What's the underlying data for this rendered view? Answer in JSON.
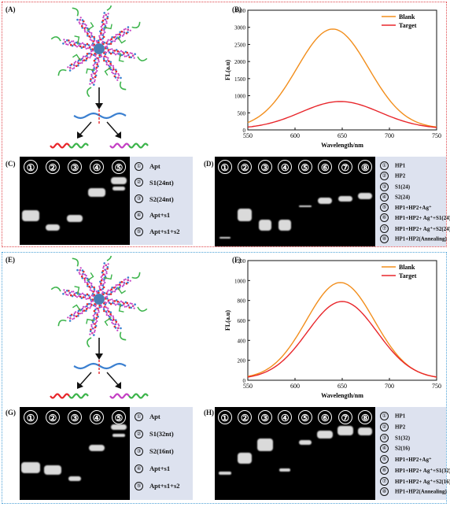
{
  "panels": {
    "A": "(A)",
    "B": "(B)",
    "C": "(C)",
    "D": "(D)",
    "E": "(E)",
    "F": "(F)",
    "G": "(G)",
    "H": "(H)"
  },
  "chart_data": [
    {
      "type": "line",
      "panel": "B",
      "xlabel": "Wavelength/nm",
      "ylabel": "FL(a.u)",
      "xlim": [
        550,
        750
      ],
      "ylim": [
        0,
        3500
      ],
      "xticks": [
        "550",
        "600",
        "650",
        "700",
        "750"
      ],
      "yticks": [
        "0",
        "500",
        "1000",
        "1500",
        "2000",
        "2500",
        "3000",
        "3500"
      ],
      "series": [
        {
          "name": "Blank",
          "color": "#f28e1c",
          "peak_x": 640,
          "peak_y": 2950,
          "width": 38,
          "baseline": 40
        },
        {
          "name": "Target",
          "color": "#e8262b",
          "peak_x": 648,
          "peak_y": 830,
          "width": 42,
          "baseline": 30
        }
      ],
      "legend": "top-right"
    },
    {
      "type": "line",
      "panel": "F",
      "xlabel": "Wavelength/nm",
      "ylabel": "FL(a.u)",
      "xlim": [
        550,
        750
      ],
      "ylim": [
        0,
        1200
      ],
      "xticks": [
        "550",
        "600",
        "650",
        "700",
        "750"
      ],
      "yticks": [
        "0",
        "200",
        "400",
        "600",
        "800",
        "1000",
        "1200"
      ],
      "series": [
        {
          "name": "Blank",
          "color": "#f28e1c",
          "peak_x": 648,
          "peak_y": 980,
          "width": 36,
          "baseline": 15
        },
        {
          "name": "Target",
          "color": "#e8262b",
          "peak_x": 650,
          "peak_y": 790,
          "width": 37,
          "baseline": 12
        }
      ],
      "legend": "top-right"
    }
  ],
  "gels": {
    "C": {
      "lanes": [
        "①",
        "②",
        "③",
        "④",
        "⑤"
      ],
      "legend": [
        {
          "num": "①",
          "text": "Apt"
        },
        {
          "num": "②",
          "text": "S1(24nt)"
        },
        {
          "num": "③",
          "text": "S2(24nt)"
        },
        {
          "num": "④",
          "text": "Apt+s1"
        },
        {
          "num": "⑤",
          "text": "Apt+s1+s2"
        }
      ]
    },
    "D": {
      "lanes": [
        "①",
        "②",
        "③",
        "④",
        "⑤",
        "⑥",
        "⑦",
        "⑧"
      ],
      "legend": [
        {
          "num": "①",
          "text": "HP1"
        },
        {
          "num": "②",
          "text": "HP2"
        },
        {
          "num": "③",
          "text": "S1(24)"
        },
        {
          "num": "④",
          "text": "S2(24)"
        },
        {
          "num": "⑤",
          "text": "HP1+HP2+Ag⁺"
        },
        {
          "num": "⑥",
          "text": "HP1+HP2+ Ag⁺+S1(24)"
        },
        {
          "num": "⑦",
          "text": "HP1+HP2+ Ag⁺+S2(24)"
        },
        {
          "num": "⑧",
          "text": "HP1+HP2(Annealing)"
        }
      ]
    },
    "G": {
      "lanes": [
        "①",
        "②",
        "③",
        "④",
        "⑤"
      ],
      "legend": [
        {
          "num": "①",
          "text": "Apt"
        },
        {
          "num": "②",
          "text": "S1(32nt)"
        },
        {
          "num": "③",
          "text": "S2(16nt)"
        },
        {
          "num": "④",
          "text": "Apt+s1"
        },
        {
          "num": "⑤",
          "text": "Apt+s1+s2"
        }
      ]
    },
    "H": {
      "lanes": [
        "①",
        "②",
        "③",
        "④",
        "⑤",
        "⑥",
        "⑦",
        "⑧"
      ],
      "legend": [
        {
          "num": "①",
          "text": "HP1"
        },
        {
          "num": "②",
          "text": "HP2"
        },
        {
          "num": "③",
          "text": "S1(32)"
        },
        {
          "num": "④",
          "text": "S2(16)"
        },
        {
          "num": "⑤",
          "text": "HP1+HP2+Ag⁺"
        },
        {
          "num": "⑥",
          "text": "HP1+HP2+ Ag⁺+S1(32)"
        },
        {
          "num": "⑦",
          "text": "HP1+HP2+ Ag⁺+S2(16)"
        },
        {
          "num": "⑧",
          "text": "HP1+HP2(Annealing)"
        }
      ]
    }
  },
  "colors": {
    "dna_red": "#e8262b",
    "dna_green": "#3cb44b",
    "dna_blue": "#3a7fd0",
    "dna_magenta": "#c43fc4",
    "core": "#4a7fb5"
  }
}
